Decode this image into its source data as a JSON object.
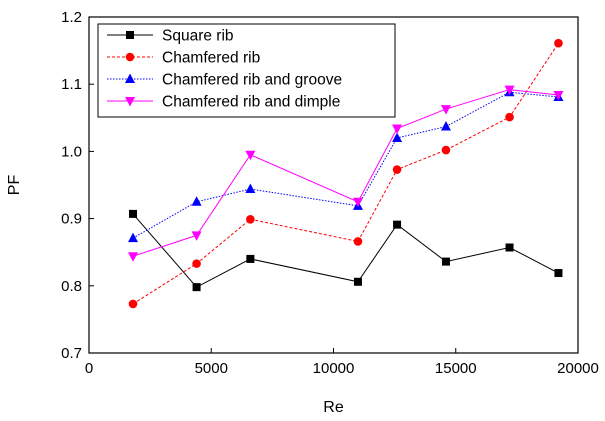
{
  "chart_data": {
    "type": "line",
    "xlabel": "Re",
    "ylabel": "PF",
    "xlim": [
      0,
      20000
    ],
    "ylim": [
      0.7,
      1.2
    ],
    "xticks": [
      "0",
      "5000",
      "10000",
      "15000",
      "20000"
    ],
    "yticks": [
      "0.7",
      "0.8",
      "0.9",
      "1.0",
      "1.1",
      "1.2"
    ],
    "grid": false,
    "legend_position": "top-left",
    "series": [
      {
        "name": "Square rib",
        "color": "#000000",
        "marker": "square",
        "line": "solid",
        "x": [
          1800,
          4400,
          6600,
          11000,
          12600,
          14600,
          17200,
          19200
        ],
        "y": [
          0.907,
          0.798,
          0.84,
          0.806,
          0.891,
          0.836,
          0.857,
          0.819
        ]
      },
      {
        "name": "Chamfered rib",
        "color": "#ff0000",
        "marker": "circle",
        "line": "dashed",
        "x": [
          1800,
          4400,
          6600,
          11000,
          12600,
          14600,
          17200,
          19200
        ],
        "y": [
          0.773,
          0.833,
          0.899,
          0.866,
          0.973,
          1.002,
          1.051,
          1.161
        ]
      },
      {
        "name": "Chamfered rib and groove",
        "color": "#0000ff",
        "marker": "triangle-up",
        "line": "dotted",
        "x": [
          1800,
          4400,
          6600,
          11000,
          12600,
          14600,
          17200,
          19200
        ],
        "y": [
          0.871,
          0.925,
          0.944,
          0.919,
          1.02,
          1.037,
          1.088,
          1.081
        ]
      },
      {
        "name": "Chamfered rib and dimple",
        "color": "#ff00ff",
        "marker": "triangle-down",
        "line": "solid",
        "x": [
          1800,
          4400,
          6600,
          11000,
          12600,
          14600,
          17200,
          19200
        ],
        "y": [
          0.844,
          0.875,
          0.995,
          0.925,
          1.034,
          1.063,
          1.092,
          1.084
        ]
      }
    ]
  }
}
